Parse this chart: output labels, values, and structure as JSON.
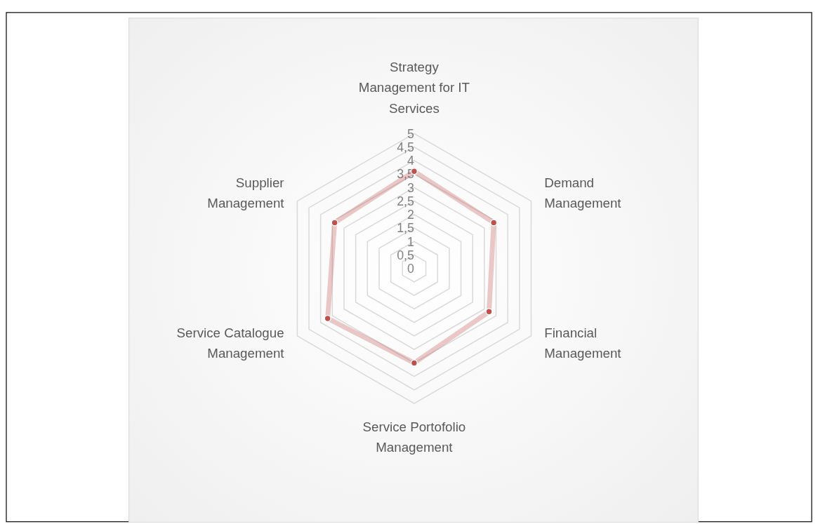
{
  "chart_data": {
    "type": "radar",
    "categories": [
      "Strategy Management for IT Services",
      "Demand Management",
      "Financial Management",
      "Service Portofolio Management",
      "Service Catalogue Management",
      "Supplier Management"
    ],
    "series": [
      {
        "color": "#c0504d",
        "values": [
          3.6,
          3.4,
          3.2,
          3.5,
          3.7,
          3.4
        ]
      }
    ],
    "ylim": [
      0,
      5
    ],
    "yticks": [
      0,
      {
        "value": 0.5,
        "label": "0,5"
      },
      1,
      {
        "value": 1.5,
        "label": "1,5"
      },
      2,
      {
        "value": 2.5,
        "label": "2,5"
      },
      3,
      {
        "value": 3.5,
        "label": "3,5"
      },
      4,
      {
        "value": 4.5,
        "label": "4,5"
      },
      5
    ],
    "grid": true,
    "marker": "circle"
  }
}
